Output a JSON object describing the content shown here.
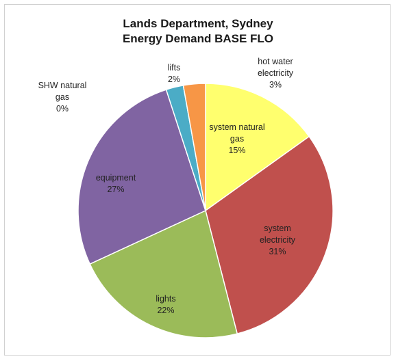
{
  "chart_data": {
    "type": "pie",
    "title_lines": [
      "Lands Department, Sydney",
      "Energy Demand BASE FLO"
    ],
    "slices": [
      {
        "label_lines": [
          "system natural",
          "gas"
        ],
        "percent_label": "15%",
        "value": 15.1,
        "color": "#FFFF6E"
      },
      {
        "label_lines": [
          "system",
          "electricity"
        ],
        "percent_label": "31%",
        "value": 30.9,
        "color": "#C0504D"
      },
      {
        "label_lines": [
          "lights"
        ],
        "percent_label": "22%",
        "value": 22.1,
        "color": "#9BBB59"
      },
      {
        "label_lines": [
          "equipment"
        ],
        "percent_label": "27%",
        "value": 26.9,
        "color": "#8064A2"
      },
      {
        "label_lines": [
          "SHW natural",
          "gas"
        ],
        "percent_label": "0%",
        "value": 0.0,
        "color": "#2C4D75"
      },
      {
        "label_lines": [
          "lifts"
        ],
        "percent_label": "2%",
        "value": 2.2,
        "color": "#4BACC6"
      },
      {
        "label_lines": [
          "hot water",
          "electricity"
        ],
        "percent_label": "3%",
        "value": 2.8,
        "color": "#F79646"
      }
    ],
    "start_angle_deg": 0,
    "direction": "clockwise",
    "legend": "none"
  }
}
